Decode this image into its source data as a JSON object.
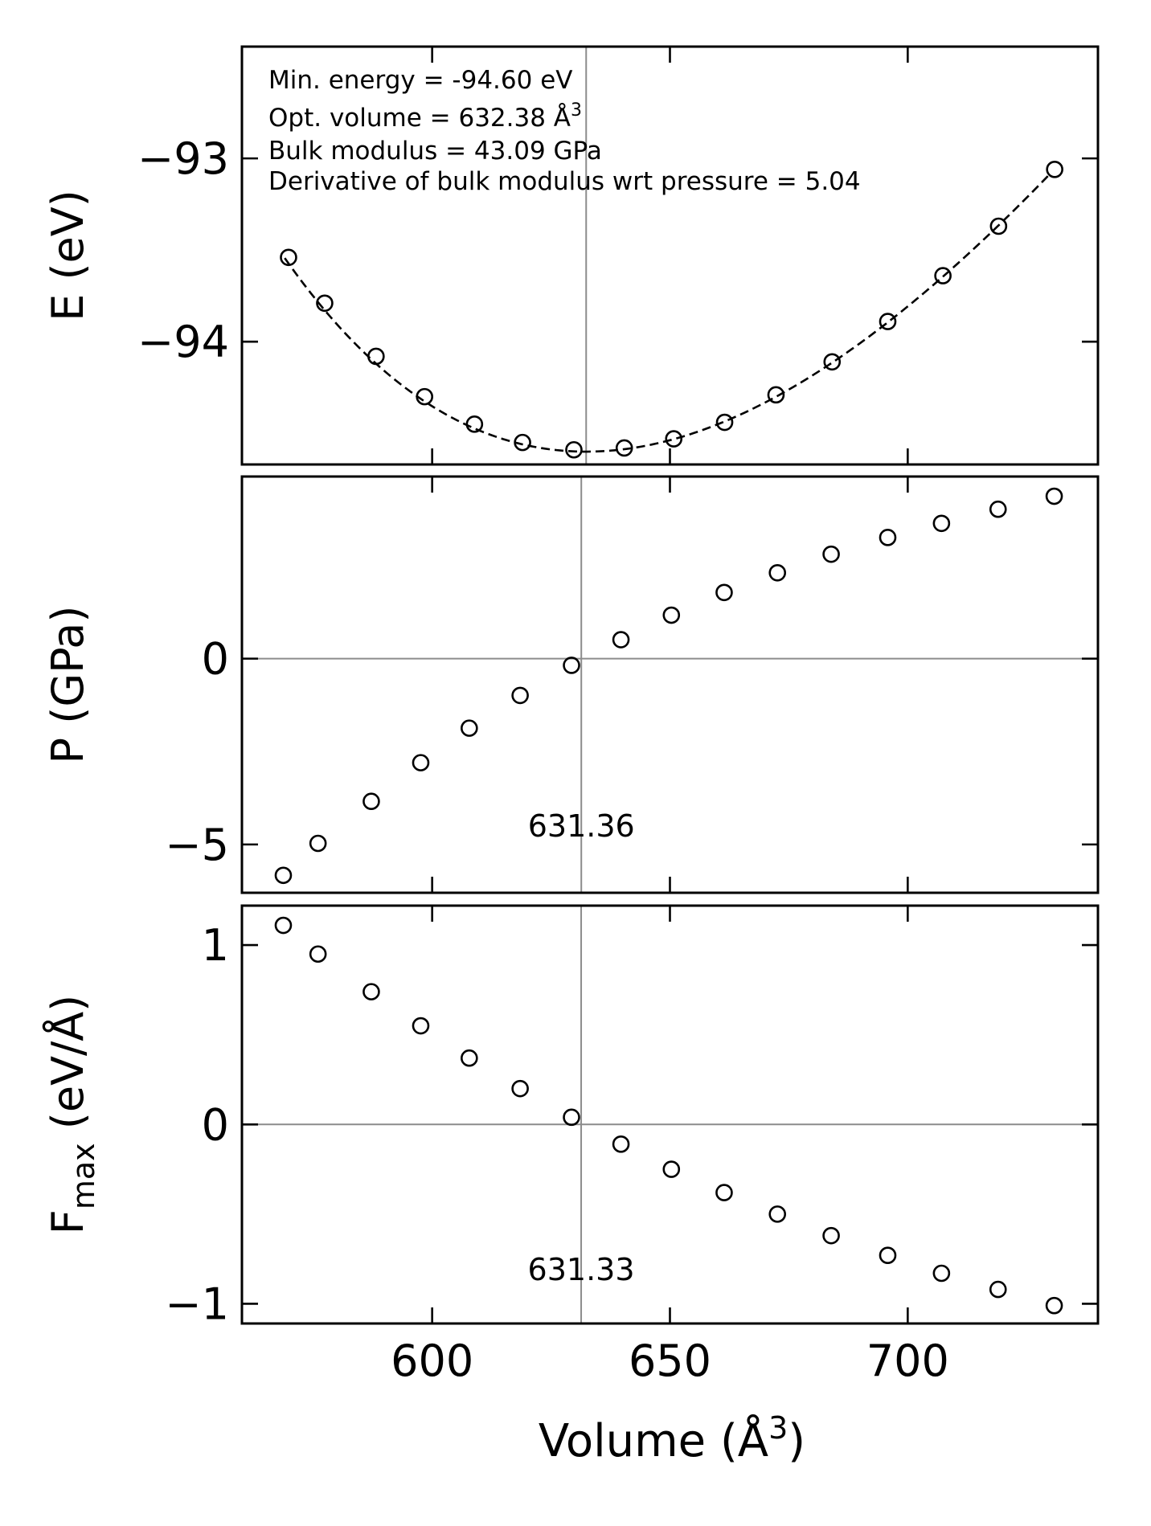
{
  "figure": {
    "xlabel": "Volume (Å",
    "xlabel_sup": "3",
    "xlabel_end": ")"
  },
  "chart_data": [
    {
      "type": "scatter",
      "panel": "energy",
      "ylabel": "E (eV)",
      "ylim": [
        -94.67,
        -92.39
      ],
      "xlim": [
        560,
        740
      ],
      "yticks": [
        {
          "value": -93,
          "label": "−93"
        },
        {
          "value": -94,
          "label": "−94"
        }
      ],
      "annotations": [
        {
          "text": "Min. energy = -94.60 eV"
        },
        {
          "text": "Opt. volume = 632.38 Å",
          "sup": "3"
        },
        {
          "text": "Bulk modulus = 43.09 GPa"
        },
        {
          "text": "Derivative of bulk modulus wrt pressure = 5.04"
        }
      ],
      "vline": 632.38,
      "fit": {
        "style": "dashed",
        "E0": -94.6,
        "V0": 632.38,
        "B0_eV_per_A3": 0.2689,
        "B0_prime": 5.04,
        "x_range": [
          569,
          730
        ]
      },
      "x": [
        569.8,
        577.4,
        588.2,
        598.4,
        608.9,
        619.0,
        629.8,
        640.4,
        650.8,
        661.5,
        672.3,
        684.1,
        695.8,
        707.4,
        719.1,
        730.9
      ],
      "y": [
        -93.54,
        -93.79,
        -94.08,
        -94.3,
        -94.45,
        -94.55,
        -94.59,
        -94.58,
        -94.53,
        -94.44,
        -94.29,
        -94.11,
        -93.89,
        -93.64,
        -93.37,
        -93.06
      ]
    },
    {
      "type": "scatter",
      "panel": "pressure",
      "ylabel": "P (GPa)",
      "ylim": [
        -6.3,
        4.9
      ],
      "xlim": [
        560,
        740
      ],
      "yticks": [
        {
          "value": 0,
          "label": "0"
        },
        {
          "value": -5,
          "label": "−5"
        }
      ],
      "hline": 0,
      "vline": 631.36,
      "vline_label": "631.36",
      "label_y": -4.5,
      "x": [
        568.7,
        576.0,
        587.2,
        597.6,
        607.8,
        618.5,
        629.3,
        639.7,
        650.3,
        661.4,
        672.6,
        683.9,
        695.8,
        707.1,
        719.0,
        730.8
      ],
      "y": [
        -5.83,
        -4.97,
        -3.84,
        -2.8,
        -1.87,
        -0.99,
        -0.18,
        0.51,
        1.17,
        1.78,
        2.31,
        2.81,
        3.26,
        3.64,
        4.02,
        4.37
      ]
    },
    {
      "type": "scatter",
      "panel": "force",
      "ylabel": "F",
      "ylabel_sub": "max",
      "ylabel_tail": " (eV/Å)",
      "ylim": [
        -1.11,
        1.22
      ],
      "xlim": [
        560,
        740
      ],
      "yticks": [
        {
          "value": 1,
          "label": "1"
        },
        {
          "value": 0,
          "label": "0"
        },
        {
          "value": -1,
          "label": "−1"
        }
      ],
      "xticks": [
        {
          "value": 600,
          "label": "600"
        },
        {
          "value": 650,
          "label": "650"
        },
        {
          "value": 700,
          "label": "700"
        }
      ],
      "hline": 0,
      "vline": 631.33,
      "vline_label": "631.33",
      "label_y": -0.81,
      "x": [
        568.7,
        576.0,
        587.2,
        597.6,
        607.8,
        618.5,
        629.3,
        639.7,
        650.3,
        661.4,
        672.6,
        683.9,
        695.8,
        707.1,
        719.0,
        730.8
      ],
      "y": [
        1.11,
        0.95,
        0.74,
        0.55,
        0.37,
        0.2,
        0.04,
        -0.11,
        -0.25,
        -0.38,
        -0.5,
        -0.62,
        -0.73,
        -0.83,
        -0.92,
        -1.01
      ]
    }
  ]
}
